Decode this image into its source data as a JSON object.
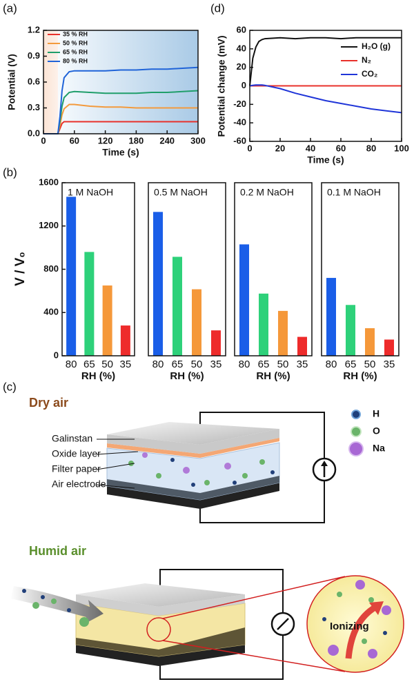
{
  "panel_labels": [
    "(a)",
    "(b)",
    "(c)",
    "(d)"
  ],
  "chart_data": [
    {
      "type": "line",
      "x_label": "Time (s)",
      "y_label": "Potential (V)",
      "xlim": [
        0,
        300
      ],
      "xticks": [
        0,
        60,
        120,
        180,
        240,
        300
      ],
      "ylim": [
        0,
        1.2
      ],
      "yticks": [
        {
          "value": 0,
          "label": "0.0"
        },
        0.3,
        0.6,
        0.9,
        1.2
      ],
      "legend": "upper left",
      "x": [
        0,
        28,
        32,
        36,
        40,
        50,
        60,
        90,
        120,
        150,
        180,
        210,
        240,
        270,
        300
      ],
      "series": [
        {
          "name": "35 % RH",
          "color": "#e8302a",
          "values": [
            0,
            0,
            0.06,
            0.12,
            0.14,
            0.14,
            0.14,
            0.14,
            0.14,
            0.14,
            0.14,
            0.14,
            0.14,
            0.14,
            0.14
          ]
        },
        {
          "name": "50 % RH",
          "color": "#f39a3c",
          "values": [
            0,
            0,
            0.1,
            0.22,
            0.29,
            0.34,
            0.34,
            0.32,
            0.31,
            0.31,
            0.3,
            0.3,
            0.3,
            0.3,
            0.3
          ]
        },
        {
          "name": "65 % RH",
          "color": "#1f9e6a",
          "values": [
            0,
            0,
            0.15,
            0.32,
            0.42,
            0.48,
            0.49,
            0.48,
            0.47,
            0.47,
            0.47,
            0.48,
            0.48,
            0.49,
            0.5
          ]
        },
        {
          "name": "80 % RH",
          "color": "#1f63d8",
          "values": [
            0,
            0,
            0.2,
            0.5,
            0.65,
            0.72,
            0.73,
            0.73,
            0.73,
            0.74,
            0.74,
            0.75,
            0.75,
            0.76,
            0.77
          ]
        }
      ]
    },
    {
      "type": "line",
      "x_label": "Time (s)",
      "y_label": "Potential change (mV)",
      "xlim": [
        0,
        100
      ],
      "xticks": [
        0,
        20,
        40,
        60,
        80,
        100
      ],
      "ylim": [
        -60,
        60
      ],
      "yticks": [
        -60,
        -40,
        -20,
        0,
        20,
        40,
        60
      ],
      "legend": "upper right",
      "x": [
        0,
        2,
        4,
        6,
        8,
        10,
        20,
        30,
        40,
        50,
        60,
        70,
        80,
        90,
        100
      ],
      "series": [
        {
          "name": "H₂O (g)",
          "color": "#111111",
          "values": [
            0,
            30,
            42,
            48,
            50,
            51,
            52,
            51,
            52,
            52,
            51,
            52,
            52,
            52,
            52
          ]
        },
        {
          "name": "N₂",
          "color": "#e8302a",
          "values": [
            0,
            0,
            0,
            0,
            0,
            0,
            0,
            0,
            0,
            0,
            0,
            0,
            0,
            0,
            0
          ]
        },
        {
          "name": "CO₂",
          "color": "#1f35d8",
          "values": [
            0,
            0.5,
            1,
            1,
            1,
            0.5,
            -3,
            -8,
            -12,
            -16,
            -19,
            -22,
            -25,
            -27,
            -29
          ]
        }
      ]
    },
    {
      "type": "bar",
      "subtitle": "1 M  NaOH",
      "y_label": "V / V₀",
      "x_label": "RH (%)",
      "categories": [
        "80",
        "65",
        "50",
        "35"
      ],
      "values": [
        1470,
        960,
        650,
        280
      ],
      "colors": [
        "#1a5ee8",
        "#2ed17a",
        "#f5983a",
        "#ee2b2b"
      ],
      "ylim": [
        0,
        1600
      ],
      "yticks": [
        0,
        400,
        800,
        1200,
        1600
      ]
    },
    {
      "type": "bar",
      "subtitle": "0.5 M  NaOH",
      "x_label": "RH (%)",
      "categories": [
        "80",
        "65",
        "50",
        "35"
      ],
      "values": [
        1330,
        915,
        615,
        235
      ],
      "colors": [
        "#1a5ee8",
        "#2ed17a",
        "#f5983a",
        "#ee2b2b"
      ],
      "ylim": [
        0,
        1600
      ]
    },
    {
      "type": "bar",
      "subtitle": "0.2 M  NaOH",
      "x_label": "RH (%)",
      "categories": [
        "80",
        "65",
        "50",
        "35"
      ],
      "values": [
        1030,
        575,
        415,
        175
      ],
      "colors": [
        "#1a5ee8",
        "#2ed17a",
        "#f5983a",
        "#ee2b2b"
      ],
      "ylim": [
        0,
        1600
      ]
    },
    {
      "type": "bar",
      "subtitle": "0.1 M  NaOH",
      "x_label": "RH (%)",
      "categories": [
        "80",
        "65",
        "50",
        "35"
      ],
      "values": [
        720,
        470,
        255,
        150
      ],
      "colors": [
        "#1a5ee8",
        "#2ed17a",
        "#f5983a",
        "#ee2b2b"
      ],
      "ylim": [
        0,
        1600
      ]
    }
  ],
  "diagram": {
    "dry_title": "Dry air",
    "humid_title": "Humid air",
    "layers": [
      "Galinstan",
      "Oxide layer",
      "Filter paper",
      "Air electrode"
    ],
    "elements": [
      "H",
      "O",
      "Na"
    ],
    "process": "Ionizing"
  }
}
